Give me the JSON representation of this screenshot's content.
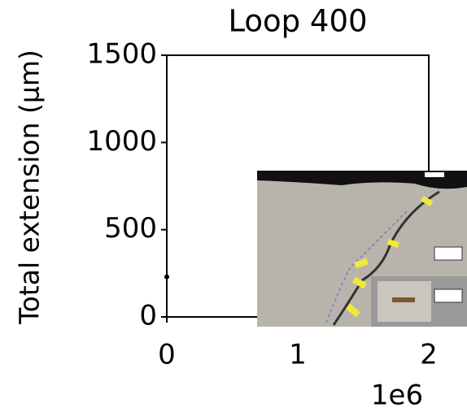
{
  "chart_data": {
    "type": "scatter",
    "title": "Loop 400",
    "y_label": "Total extension (μm)",
    "x_offset_label": "1e6",
    "x": [
      0
    ],
    "values": [
      230
    ],
    "color": "#000000",
    "xlim": [
      0,
      2000000
    ],
    "xticks": [
      0,
      {
        "value": 1000000,
        "label": "1"
      },
      {
        "value": 2000000,
        "label": "2"
      }
    ],
    "ylim": [
      0,
      1500
    ],
    "yticks": [
      0,
      500,
      1000,
      1500
    ],
    "grid": false
  }
}
